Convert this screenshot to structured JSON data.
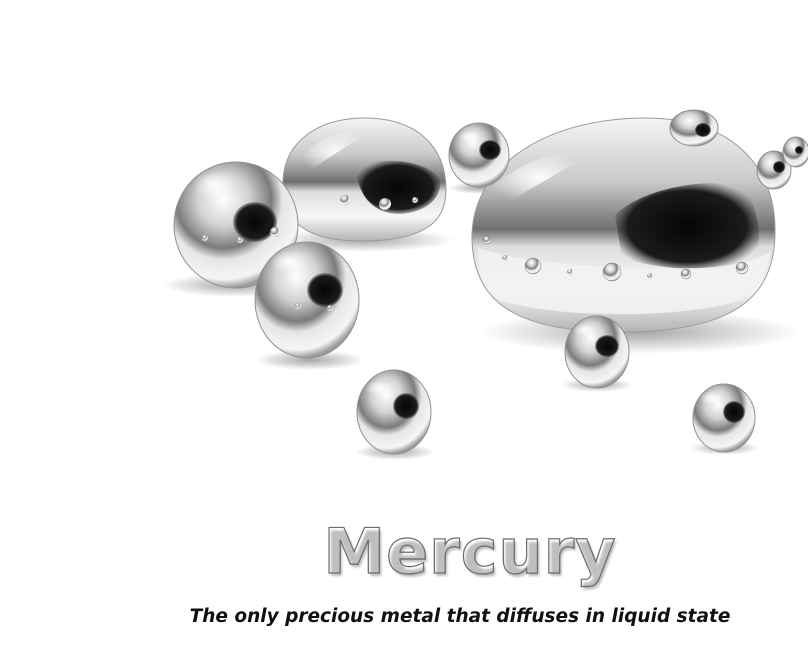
{
  "image": {
    "title": "Mercury",
    "caption": "The only precious metal that diffuses in liquid state"
  }
}
